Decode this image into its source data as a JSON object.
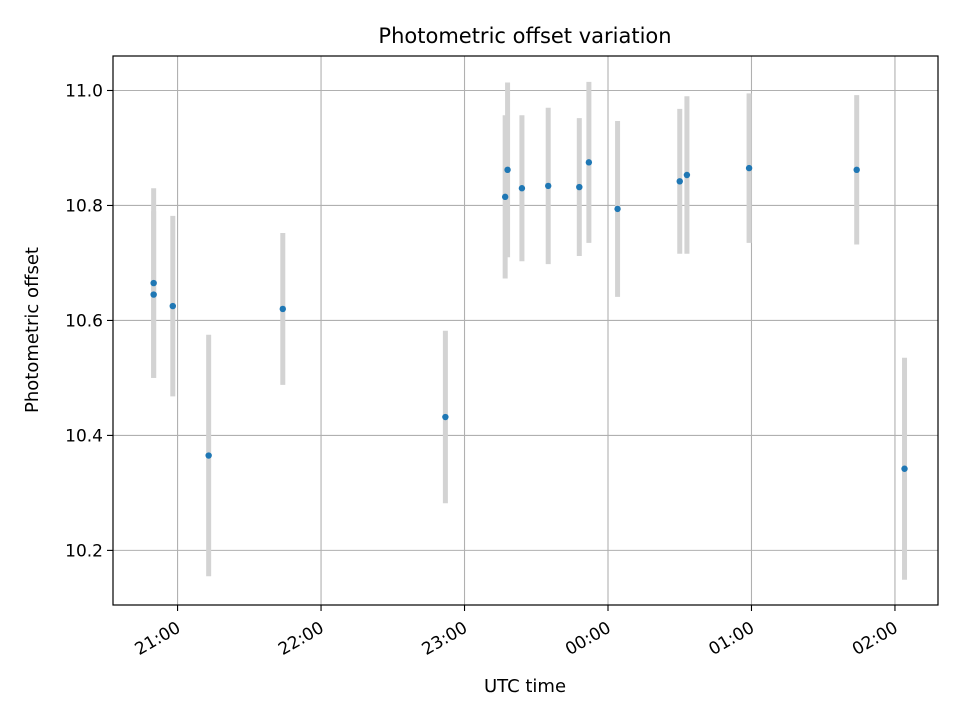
{
  "chart_data": {
    "type": "scatter",
    "title": "Photometric offset variation",
    "xlabel": "UTC time",
    "ylabel": "Photometric offset",
    "x_axis_kind": "time",
    "x_ticks": [
      "21:00",
      "22:00",
      "23:00",
      "00:00",
      "01:00",
      "02:00"
    ],
    "y_ticks": [
      "10.2",
      "10.4",
      "10.6",
      "10.8",
      "11.0"
    ],
    "y_tick_values": [
      10.2,
      10.4,
      10.6,
      10.8,
      11.0
    ],
    "ylim": [
      10.105,
      11.06
    ],
    "xlim": [
      "20:33",
      "02:18"
    ],
    "grid": true,
    "marker_color": "#1f77b4",
    "errorbar_color": "#d3d3d3",
    "points": [
      {
        "t": "20:50",
        "y": 10.665,
        "err": 0.165
      },
      {
        "t": "20:50",
        "y": 10.645,
        "err": 0.145
      },
      {
        "t": "20:58",
        "y": 10.625,
        "err": 0.157
      },
      {
        "t": "21:13",
        "y": 10.365,
        "err": 0.21
      },
      {
        "t": "21:44",
        "y": 10.62,
        "err": 0.132
      },
      {
        "t": "22:52",
        "y": 10.432,
        "err": 0.15
      },
      {
        "t": "23:17",
        "y": 10.815,
        "err": 0.142
      },
      {
        "t": "23:18",
        "y": 10.862,
        "err": 0.152
      },
      {
        "t": "23:24",
        "y": 10.83,
        "err": 0.127
      },
      {
        "t": "23:35",
        "y": 10.834,
        "err": 0.136
      },
      {
        "t": "23:48",
        "y": 10.832,
        "err": 0.12
      },
      {
        "t": "23:52",
        "y": 10.875,
        "err": 0.14
      },
      {
        "t": "00:04",
        "y": 10.794,
        "err": 0.153
      },
      {
        "t": "00:30",
        "y": 10.842,
        "err": 0.126
      },
      {
        "t": "00:33",
        "y": 10.853,
        "err": 0.137
      },
      {
        "t": "00:59",
        "y": 10.865,
        "err": 0.13
      },
      {
        "t": "01:44",
        "y": 10.862,
        "err": 0.13
      },
      {
        "t": "02:04",
        "y": 10.342,
        "err": 0.193
      }
    ]
  }
}
